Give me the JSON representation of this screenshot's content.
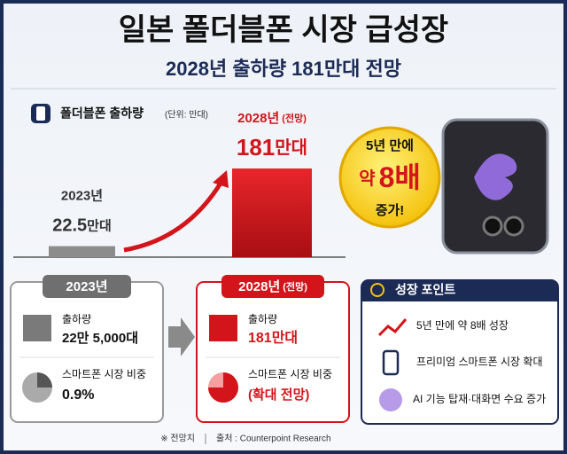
{
  "header": {
    "title": "일본 폴더블폰 시장 급성장",
    "subtitle": "2028년 출하량 181만대 전망"
  },
  "chart_data": {
    "type": "bar",
    "title": "폴더블폰 출하량",
    "unit_note": "(단위: 만대)",
    "categories": [
      "2023년",
      "2028년"
    ],
    "forecast_note": "(전망)",
    "values": [
      22.5,
      181
    ],
    "unit": "만대",
    "colors": [
      "#8c8c8c",
      "#d3151b"
    ]
  },
  "badge": {
    "line1": "5년 만에",
    "prefix": "약",
    "number": "8배",
    "line3": "증가!"
  },
  "cards": [
    {
      "header": "2023년",
      "items": [
        {
          "label": "출하량",
          "value": "22만 5,000대"
        },
        {
          "label": "스마트폰 시장 비중",
          "value": "0.9%"
        }
      ]
    },
    {
      "header": "2028년",
      "header_note": "(전망)",
      "items": [
        {
          "label": "출하량",
          "value": "181만대"
        },
        {
          "label": "스마트폰 시장 비중",
          "value": "(확대 전망)"
        }
      ]
    }
  ],
  "points": {
    "header": "성장 포인트",
    "items": [
      "5년 만에 약 8배 성장",
      "프리미엄 스마트폰 시장 확대",
      "AI 기능 탑재·대화면 수요 증가"
    ]
  },
  "footer": {
    "note": "※ 전망치",
    "source": "출처 : Counterpoint Research"
  }
}
